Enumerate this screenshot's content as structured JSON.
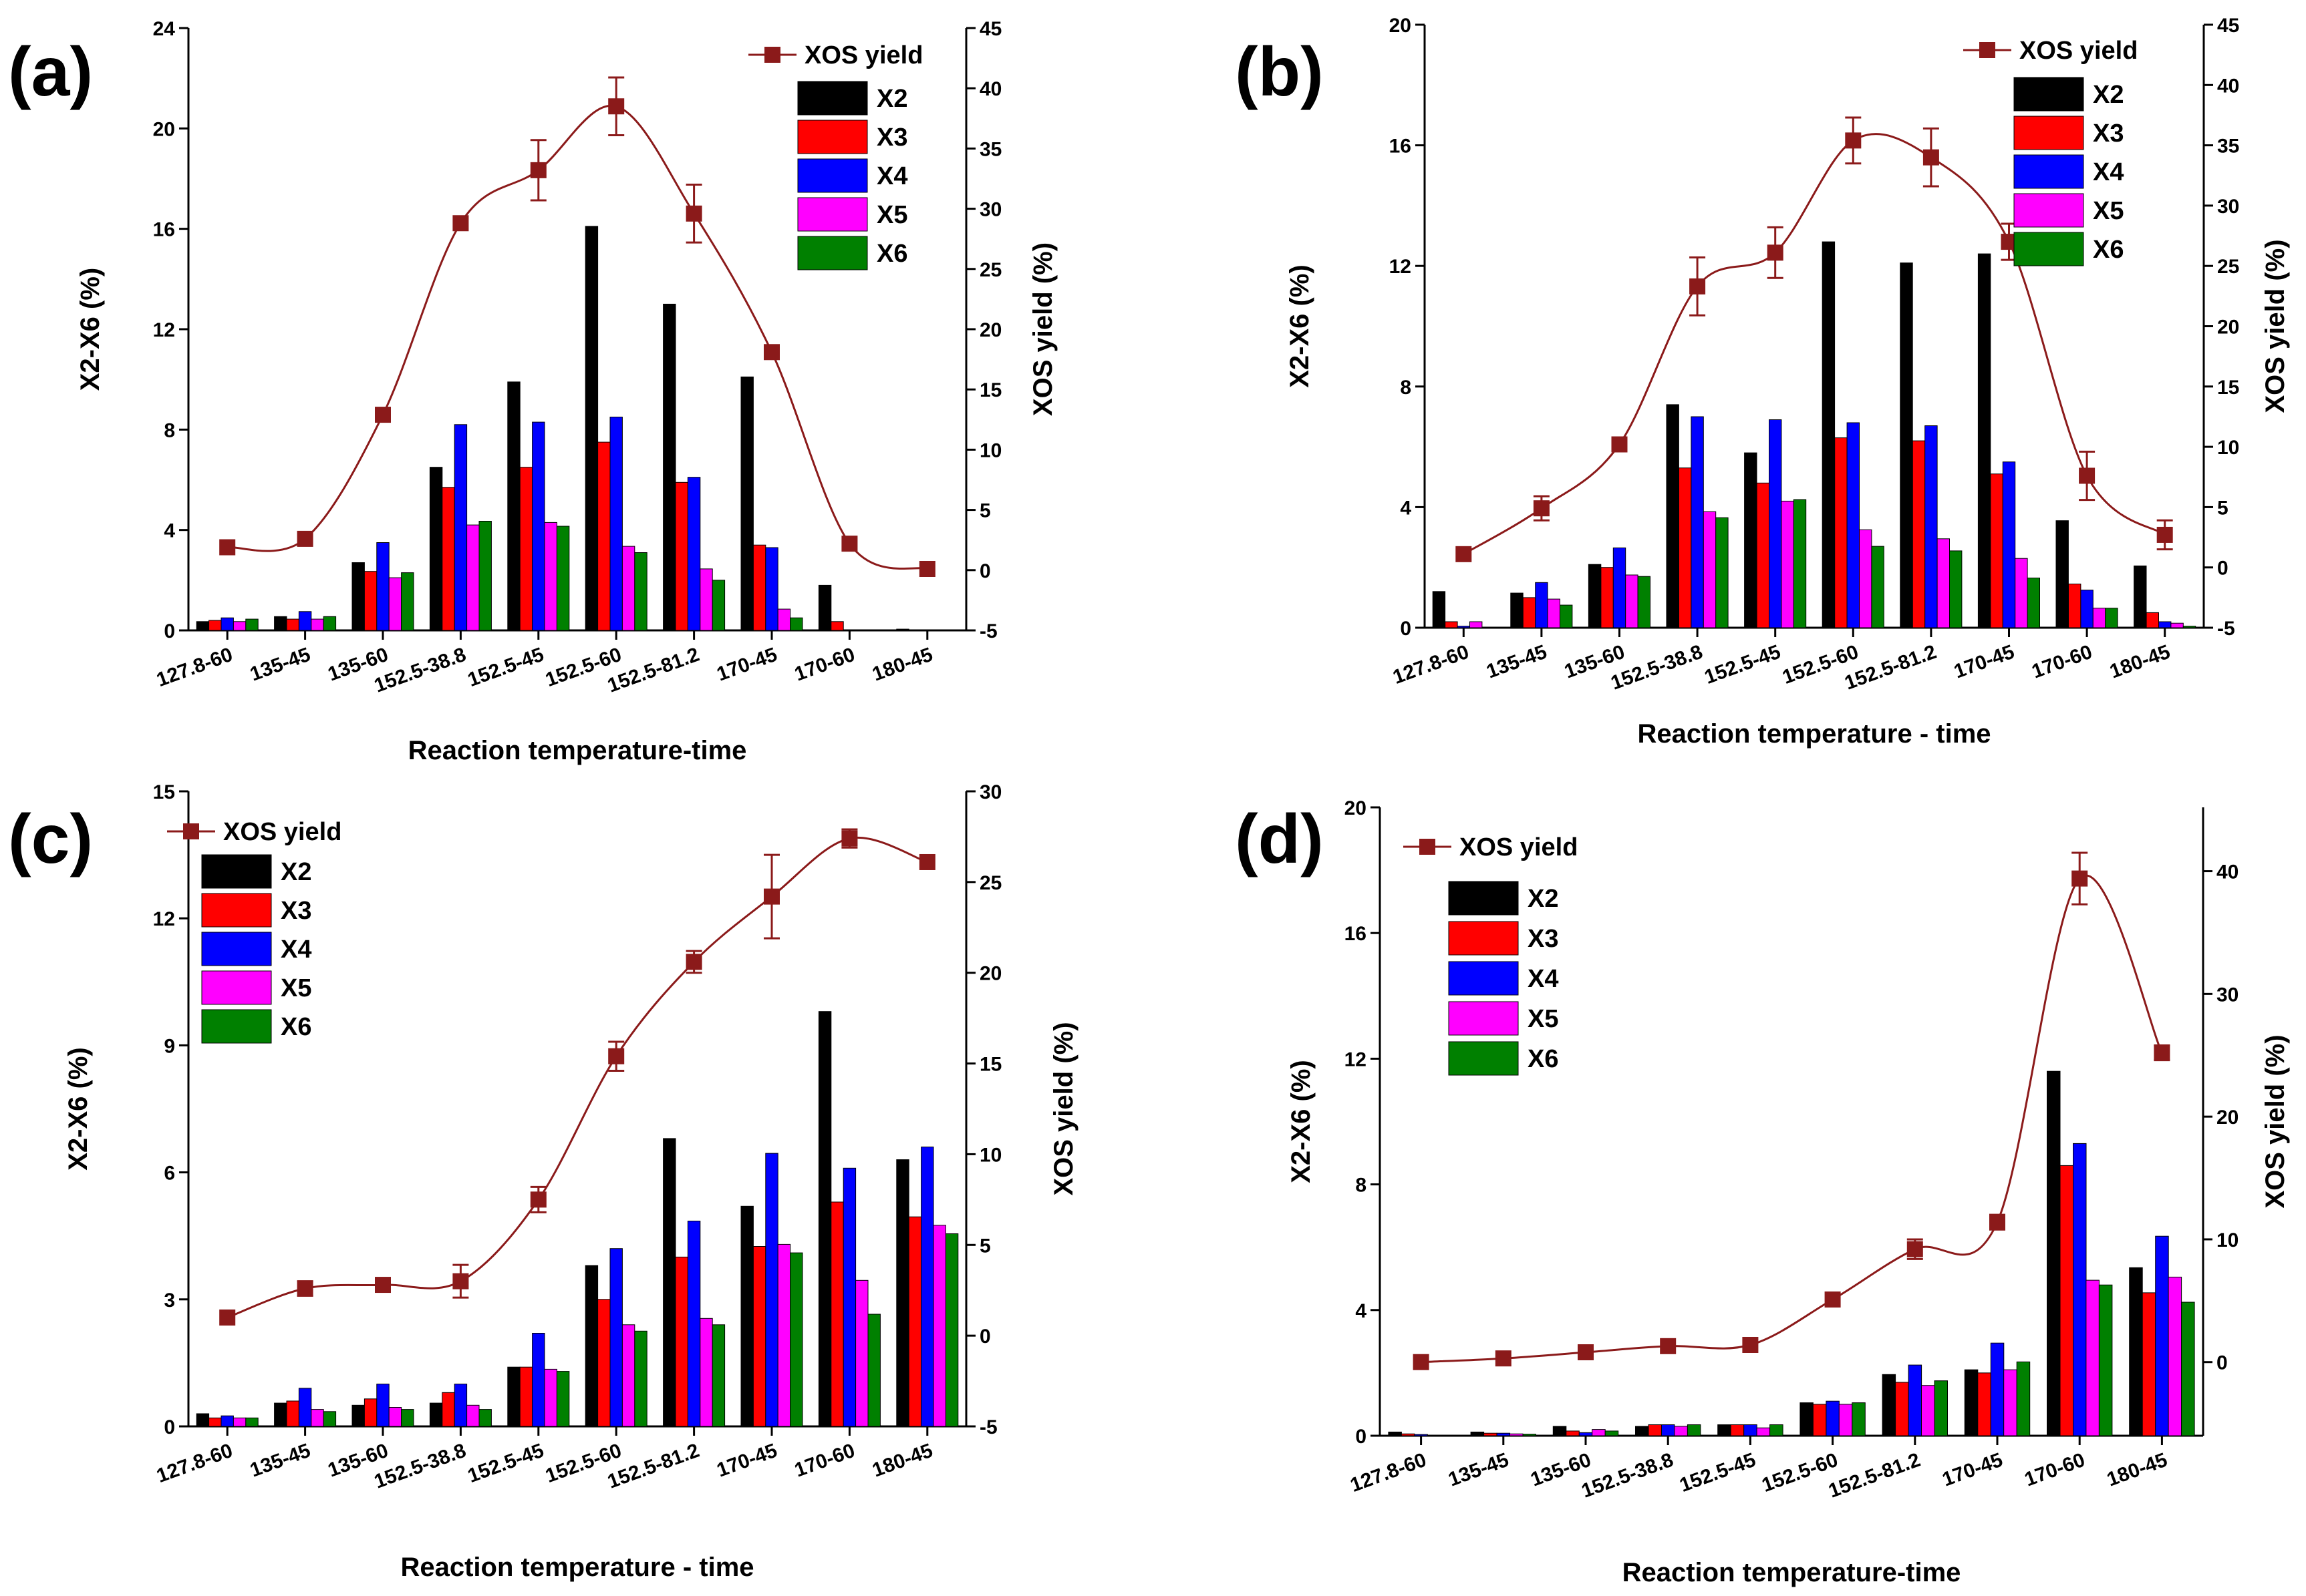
{
  "colors": {
    "X2": "#000000",
    "X3": "#ff0000",
    "X4": "#0000ff",
    "X5": "#ff00ff",
    "X6": "#008000",
    "xos": "#8b1a1a"
  },
  "chart_data": [
    {
      "panel": "(a)",
      "type": "bar",
      "categories": [
        "127.8-60",
        "135-45",
        "135-60",
        "152.5-38.8",
        "152.5-45",
        "152.5-60",
        "152.5-81.2",
        "170-45",
        "170-60",
        "180-45"
      ],
      "xlabel": "Reaction temperature-time",
      "ylabel": "X2-X6 (%)",
      "ylabel_right": "XOS yield (%)",
      "ylim": [
        0,
        24
      ],
      "yticks": [
        0,
        4,
        8,
        12,
        16,
        20,
        24
      ],
      "ylim_right": [
        -5,
        45
      ],
      "yticks_right": [
        -5,
        0,
        5,
        10,
        15,
        20,
        25,
        30,
        35,
        40,
        45
      ],
      "legend": [
        "XOS yield",
        "X2",
        "X3",
        "X4",
        "X5",
        "X6"
      ],
      "legend_position": "top-right",
      "series": [
        {
          "name": "X2",
          "values": [
            0.35,
            0.55,
            2.7,
            6.5,
            9.9,
            16.1,
            13.0,
            10.1,
            1.8,
            0.05
          ]
        },
        {
          "name": "X3",
          "values": [
            0.4,
            0.45,
            2.35,
            5.7,
            6.5,
            7.5,
            5.9,
            3.4,
            0.35,
            0.02
          ]
        },
        {
          "name": "X4",
          "values": [
            0.5,
            0.75,
            3.5,
            8.2,
            8.3,
            8.5,
            6.1,
            3.3,
            0.0,
            0.0
          ]
        },
        {
          "name": "X5",
          "values": [
            0.35,
            0.45,
            2.1,
            4.2,
            4.3,
            3.35,
            2.45,
            0.85,
            0.0,
            0.0
          ]
        },
        {
          "name": "X6",
          "values": [
            0.45,
            0.55,
            2.3,
            4.35,
            4.15,
            3.1,
            2.0,
            0.5,
            0.0,
            0.0
          ]
        }
      ],
      "line": {
        "name": "XOS yield",
        "values": [
          1.9,
          2.6,
          12.9,
          28.8,
          33.2,
          38.5,
          29.6,
          18.1,
          2.2,
          0.1
        ],
        "errors": [
          0,
          0,
          0,
          0,
          2.5,
          2.4,
          2.4,
          0,
          0,
          0
        ]
      }
    },
    {
      "panel": "(b)",
      "type": "bar",
      "categories": [
        "127.8-60",
        "135-45",
        "135-60",
        "152.5-38.8",
        "152.5-45",
        "152.5-60",
        "152.5-81.2",
        "170-45",
        "170-60",
        "180-45"
      ],
      "xlabel": "Reaction temperature - time",
      "ylabel": "X2-X6 (%)",
      "ylabel_right": "XOS yield (%)",
      "ylim": [
        0,
        20
      ],
      "yticks": [
        0,
        4,
        8,
        12,
        16,
        20
      ],
      "ylim_right": [
        -5,
        45
      ],
      "yticks_right": [
        -5,
        0,
        5,
        10,
        15,
        20,
        25,
        30,
        35,
        40,
        45
      ],
      "legend": [
        "XOS yield",
        "X2",
        "X3",
        "X4",
        "X5",
        "X6"
      ],
      "legend_position": "top-right",
      "series": [
        {
          "name": "X2",
          "values": [
            1.2,
            1.15,
            2.1,
            7.4,
            5.8,
            12.8,
            12.1,
            12.4,
            3.55,
            2.05
          ]
        },
        {
          "name": "X3",
          "values": [
            0.2,
            1.0,
            2.0,
            5.3,
            4.8,
            6.3,
            6.2,
            5.1,
            1.45,
            0.5
          ]
        },
        {
          "name": "X4",
          "values": [
            0.05,
            1.5,
            2.65,
            7.0,
            6.9,
            6.8,
            6.7,
            5.5,
            1.25,
            0.2
          ]
        },
        {
          "name": "X5",
          "values": [
            0.2,
            0.95,
            1.75,
            3.85,
            4.2,
            3.25,
            2.95,
            2.3,
            0.65,
            0.15
          ]
        },
        {
          "name": "X6",
          "values": [
            0.0,
            0.75,
            1.7,
            3.65,
            4.25,
            2.7,
            2.55,
            1.65,
            0.65,
            0.05
          ]
        }
      ],
      "line": {
        "name": "XOS yield",
        "values": [
          1.1,
          4.9,
          10.2,
          23.3,
          26.1,
          35.4,
          34.0,
          27.0,
          7.6,
          2.7
        ],
        "errors": [
          0,
          1.0,
          0,
          2.4,
          2.1,
          1.9,
          2.4,
          1.5,
          2.0,
          1.2
        ]
      }
    },
    {
      "panel": "(c)",
      "type": "bar",
      "categories": [
        "127.8-60",
        "135-45",
        "135-60",
        "152.5-38.8",
        "152.5-45",
        "152.5-60",
        "152.5-81.2",
        "170-45",
        "170-60",
        "180-45"
      ],
      "xlabel": "Reaction temperature - time",
      "ylabel": "X2-X6 (%)",
      "ylabel_right": "XOS yield (%)",
      "ylim": [
        0,
        15
      ],
      "yticks": [
        0,
        3,
        6,
        9,
        12,
        15
      ],
      "ylim_right": [
        -5,
        30
      ],
      "yticks_right": [
        -5,
        0,
        5,
        10,
        15,
        20,
        25,
        30
      ],
      "legend": [
        "XOS yield",
        "X2",
        "X3",
        "X4",
        "X5",
        "X6"
      ],
      "legend_position": "top-left",
      "series": [
        {
          "name": "X2",
          "values": [
            0.3,
            0.55,
            0.5,
            0.55,
            1.4,
            3.8,
            6.8,
            5.2,
            9.8,
            6.3
          ]
        },
        {
          "name": "X3",
          "values": [
            0.2,
            0.6,
            0.65,
            0.8,
            1.4,
            3.0,
            4.0,
            4.25,
            5.3,
            4.95
          ]
        },
        {
          "name": "X4",
          "values": [
            0.25,
            0.9,
            1.0,
            1.0,
            2.2,
            4.2,
            4.85,
            6.45,
            6.1,
            6.6
          ]
        },
        {
          "name": "X5",
          "values": [
            0.2,
            0.4,
            0.45,
            0.5,
            1.35,
            2.4,
            2.55,
            4.3,
            3.45,
            4.75
          ]
        },
        {
          "name": "X6",
          "values": [
            0.2,
            0.35,
            0.4,
            0.4,
            1.3,
            2.25,
            2.4,
            4.1,
            2.65,
            4.55
          ]
        }
      ],
      "line": {
        "name": "XOS yield",
        "values": [
          1.0,
          2.6,
          2.8,
          3.0,
          7.5,
          15.4,
          20.6,
          24.2,
          27.4,
          26.1
        ],
        "errors": [
          0,
          0.4,
          0,
          0.9,
          0.7,
          0.8,
          0.6,
          2.3,
          0.5,
          0
        ]
      }
    },
    {
      "panel": "(d)",
      "type": "bar",
      "categories": [
        "127.8-60",
        "135-45",
        "135-60",
        "152.5-38.8",
        "152.5-45",
        "152.5-60",
        "152.5-81.2",
        "170-45",
        "170-60",
        "180-45"
      ],
      "xlabel": "Reaction temperature-time",
      "ylabel": "X2-X6 (%)",
      "ylabel_right": "XOS yield (%)",
      "ylim": [
        0,
        20
      ],
      "yticks": [
        0,
        4,
        8,
        12,
        16,
        20
      ],
      "ylim_right": [
        -6,
        45.2
      ],
      "yticks_right": [
        0,
        10,
        20,
        30,
        40
      ],
      "legend": [
        "XOS yield",
        "X2",
        "X3",
        "X4",
        "X5",
        "X6"
      ],
      "legend_position": "top-left",
      "series": [
        {
          "name": "X2",
          "values": [
            0.12,
            0.12,
            0.3,
            0.3,
            0.35,
            1.05,
            1.95,
            2.1,
            11.6,
            5.35
          ]
        },
        {
          "name": "X3",
          "values": [
            0.06,
            0.08,
            0.15,
            0.35,
            0.35,
            1.0,
            1.7,
            2.0,
            8.6,
            4.55
          ]
        },
        {
          "name": "X4",
          "values": [
            0.04,
            0.08,
            0.1,
            0.35,
            0.35,
            1.1,
            2.25,
            2.95,
            9.3,
            6.35
          ]
        },
        {
          "name": "X5",
          "values": [
            0.02,
            0.06,
            0.2,
            0.3,
            0.25,
            1.0,
            1.6,
            2.1,
            4.95,
            5.05
          ]
        },
        {
          "name": "X6",
          "values": [
            0.01,
            0.05,
            0.15,
            0.35,
            0.35,
            1.05,
            1.75,
            2.35,
            4.8,
            4.25
          ]
        }
      ],
      "line": {
        "name": "XOS yield",
        "values": [
          0.0,
          0.3,
          0.8,
          1.3,
          1.4,
          5.1,
          9.2,
          11.4,
          39.4,
          25.2
        ],
        "errors": [
          0,
          0,
          0,
          0,
          0,
          0,
          0.8,
          0.6,
          2.1,
          0.6
        ]
      }
    }
  ]
}
